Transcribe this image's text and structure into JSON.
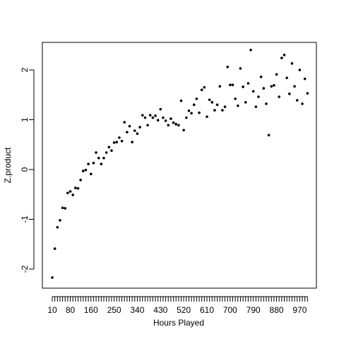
{
  "chart_data": {
    "type": "scatter",
    "xlabel": "Hours Played",
    "ylabel": "Z.product",
    "categories": [
      "10",
      null,
      null,
      null,
      null,
      null,
      null,
      "80",
      null,
      null,
      null,
      null,
      null,
      null,
      null,
      "160",
      null,
      null,
      null,
      null,
      null,
      null,
      null,
      null,
      "250",
      null,
      null,
      null,
      null,
      null,
      null,
      null,
      null,
      "340",
      null,
      null,
      null,
      null,
      null,
      null,
      null,
      null,
      "430",
      null,
      null,
      null,
      null,
      null,
      null,
      null,
      null,
      "520",
      null,
      null,
      null,
      null,
      null,
      null,
      null,
      null,
      "610",
      null,
      null,
      null,
      null,
      null,
      null,
      null,
      null,
      "700",
      null,
      null,
      null,
      null,
      null,
      null,
      null,
      null,
      "790",
      null,
      null,
      null,
      null,
      null,
      null,
      null,
      null,
      "880",
      null,
      null,
      null,
      null,
      null,
      null,
      null,
      null,
      "970",
      null,
      null,
      null
    ],
    "values": [
      -2.17,
      -1.59,
      -1.16,
      -1.02,
      -0.77,
      -0.78,
      -0.47,
      -0.44,
      -0.51,
      -0.37,
      -0.38,
      -0.21,
      -0.03,
      -0.01,
      0.11,
      -0.09,
      0.13,
      0.34,
      0.23,
      0.11,
      0.23,
      0.34,
      0.45,
      0.38,
      0.54,
      0.55,
      0.64,
      0.57,
      0.95,
      0.75,
      0.87,
      0.55,
      0.78,
      0.72,
      0.85,
      1.09,
      1.04,
      0.89,
      1.09,
      1.04,
      1.08,
      0.99,
      1.21,
      1.04,
      0.98,
      0.89,
      1.02,
      0.94,
      0.91,
      0.89,
      1.38,
      0.79,
      1.04,
      1.18,
      1.13,
      1.3,
      1.42,
      1.14,
      1.6,
      1.65,
      1.06,
      1.4,
      1.35,
      1.19,
      1.3,
      1.67,
      1.19,
      1.26,
      2.06,
      1.7,
      1.7,
      1.42,
      1.28,
      2.03,
      1.66,
      1.35,
      1.73,
      2.4,
      1.57,
      1.26,
      1.46,
      1.86,
      1.63,
      1.32,
      0.69,
      1.67,
      1.69,
      1.91,
      1.46,
      2.24,
      2.3,
      1.84,
      1.52,
      2.13,
      1.67,
      1.39,
      2.0,
      1.32,
      1.82,
      1.53
    ],
    "color": "#000000",
    "ylim": [
      -2.383,
      2.553
    ],
    "yticks": [
      -2,
      -1,
      0,
      1,
      2
    ]
  }
}
